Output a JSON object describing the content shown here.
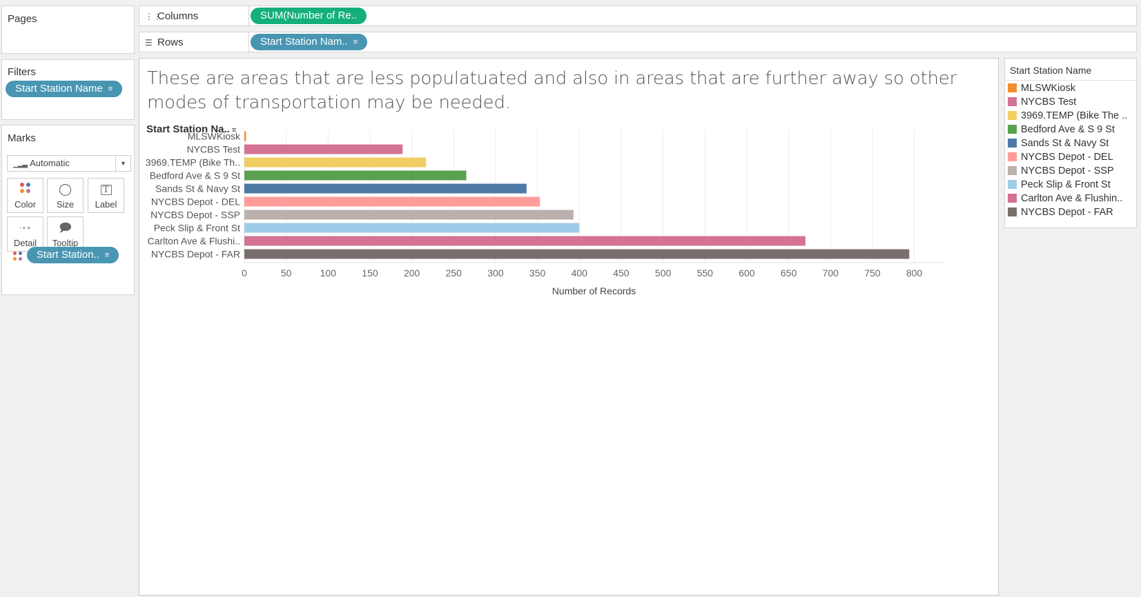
{
  "pages": {
    "title": "Pages"
  },
  "filters": {
    "title": "Filters",
    "pill": "Start Station Name"
  },
  "marks": {
    "title": "Marks",
    "type": "Automatic",
    "buttons": {
      "color": "Color",
      "size": "Size",
      "label": "Label",
      "detail": "Detail",
      "tooltip": "Tooltip"
    },
    "color_pill": "Start Station.."
  },
  "shelves": {
    "columns_label": "Columns",
    "columns_pill": "SUM(Number of Re..",
    "rows_label": "Rows",
    "rows_pill": "Start Station Nam.."
  },
  "view": {
    "title": "These are areas that are less populatuated and also in areas that are further away so other modes of transportation may be needed.",
    "row_header": "Start Station Na.."
  },
  "legend": {
    "title": "Start Station Name",
    "items": [
      {
        "label": "MLSWKiosk",
        "color": "#f28e2b"
      },
      {
        "label": "NYCBS Test",
        "color": "#d37295"
      },
      {
        "label": "3969.TEMP (Bike The ..",
        "color": "#f1ce63"
      },
      {
        "label": "Bedford Ave & S 9 St",
        "color": "#59a14f"
      },
      {
        "label": "Sands St & Navy St",
        "color": "#4e79a7"
      },
      {
        "label": "NYCBS Depot - DEL",
        "color": "#ff9d9a"
      },
      {
        "label": "NYCBS Depot - SSP",
        "color": "#bab0ac"
      },
      {
        "label": "Peck Slip & Front St",
        "color": "#a0cbe8"
      },
      {
        "label": "Carlton Ave & Flushin..",
        "color": "#d37295"
      },
      {
        "label": "NYCBS Depot - FAR",
        "color": "#79706e"
      }
    ]
  },
  "chart_data": {
    "type": "bar",
    "orientation": "horizontal",
    "categories": [
      "MLSWKiosk",
      "NYCBS Test",
      "3969.TEMP (Bike Th..",
      "Bedford Ave & S 9 St",
      "Sands St & Navy St",
      "NYCBS Depot - DEL",
      "NYCBS Depot - SSP",
      "Peck Slip & Front St",
      "Carlton Ave & Flushi..",
      "NYCBS Depot - FAR"
    ],
    "values": [
      2,
      189,
      217,
      265,
      337,
      353,
      393,
      400,
      670,
      794
    ],
    "colors": [
      "#f28e2b",
      "#d37295",
      "#f1ce63",
      "#59a14f",
      "#4e79a7",
      "#ff9d9a",
      "#bab0ac",
      "#a0cbe8",
      "#d37295",
      "#79706e"
    ],
    "xlabel": "Number of Records",
    "ylabel": "Start Station Na..",
    "xlim": [
      0,
      835
    ],
    "xticks": [
      0,
      50,
      100,
      150,
      200,
      250,
      300,
      350,
      400,
      450,
      500,
      550,
      600,
      650,
      700,
      750,
      800
    ],
    "grid": true
  }
}
